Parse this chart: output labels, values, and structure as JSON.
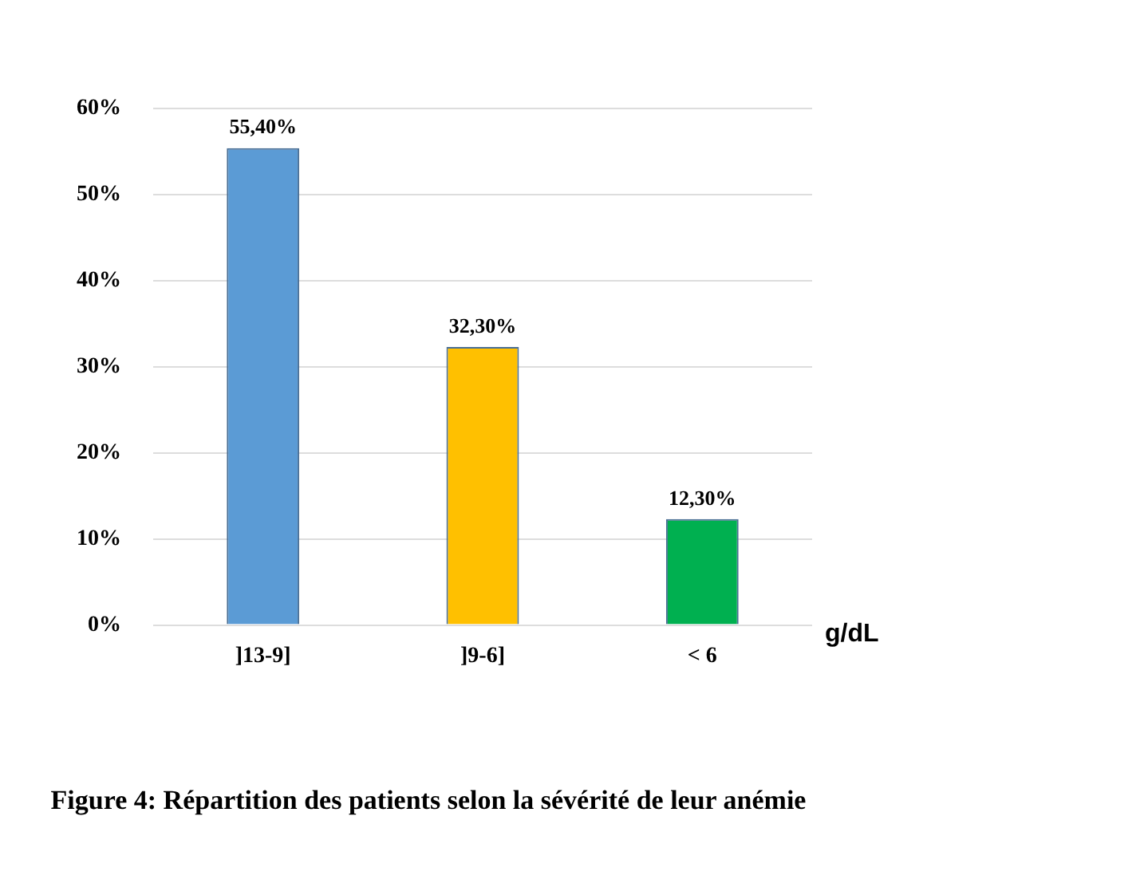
{
  "chart_data": {
    "type": "bar",
    "title": "Figure 4: Répartition des patients selon la sévérité de leur anémie",
    "xlabel": "g/dL",
    "categories": [
      "]13-9]",
      "]9-6]",
      "< 6"
    ],
    "values": [
      55.4,
      32.3,
      12.3
    ],
    "colors": [
      "#5b9bd5",
      "#ffc000",
      "#00b050"
    ],
    "value_labels": [
      "55,40%",
      "32,30%",
      "12,30%"
    ],
    "ylim": [
      0,
      60
    ],
    "yticks": [
      {
        "value": 0,
        "label": "0%"
      },
      {
        "value": 10,
        "label": "10%"
      },
      {
        "value": 20,
        "label": "20%"
      },
      {
        "value": 30,
        "label": "30%"
      },
      {
        "value": 40,
        "label": "40%"
      },
      {
        "value": 50,
        "label": "50%"
      },
      {
        "value": 60,
        "label": "60%"
      }
    ],
    "grid": "y",
    "legend": false
  }
}
